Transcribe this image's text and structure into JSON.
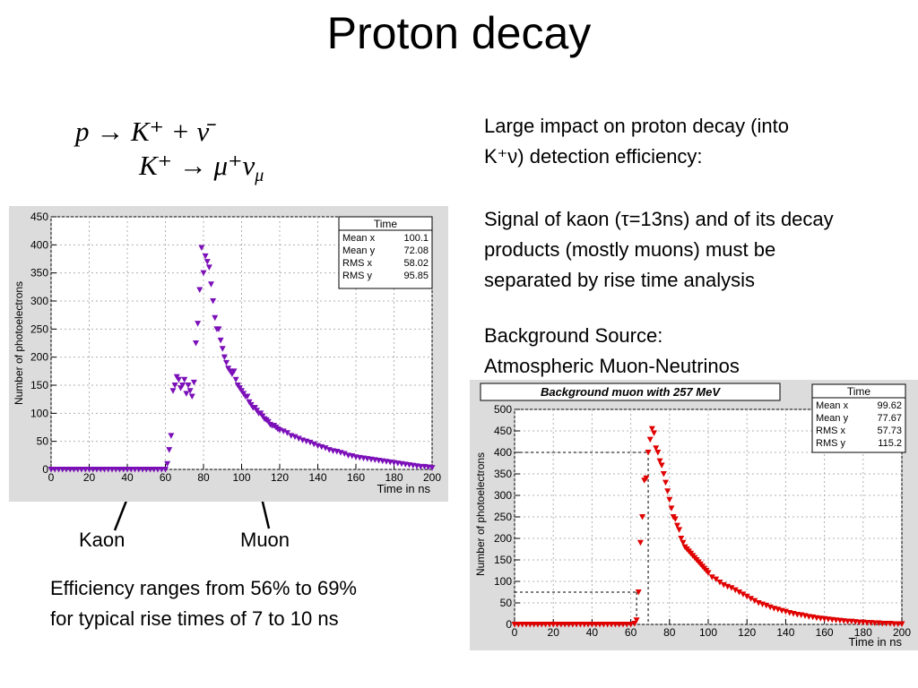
{
  "slide": {
    "title": "Proton decay",
    "equation_line1": "p → K⁺ + ν̄",
    "equation_line2": "K⁺ → μ⁺ν",
    "equation_line2_sub": "μ",
    "right_text_1_line1": "Large impact on proton decay (into",
    "right_text_1_line2": "K⁺ν)  detection efficiency:",
    "right_text_2_line1": "Signal of kaon (τ=13ns) and of its decay",
    "right_text_2_line2": "products (mostly muons) must be",
    "right_text_2_line3": "separated by rise time analysis",
    "background_line1": "Background Source:",
    "background_line2": "Atmospheric Muon-Neutrinos",
    "kaon_label": "Kaon",
    "muon_label": "Muon",
    "efficiency_line1": "Efficiency ranges from 56% to 69%",
    "efficiency_line2": "for typical rise times of 7 to 10 ns"
  },
  "chart_data": [
    {
      "type": "scatter",
      "title": "",
      "xlabel": "Time in ns",
      "ylabel": "Number of photoelectrons",
      "xlim": [
        0,
        200
      ],
      "ylim": [
        0,
        450
      ],
      "xticks": [
        0,
        20,
        40,
        60,
        80,
        100,
        120,
        140,
        160,
        180,
        200
      ],
      "yticks": [
        0,
        50,
        100,
        150,
        200,
        250,
        300,
        350,
        400,
        450
      ],
      "color": "#7b0fb8",
      "stats": {
        "name": "Time",
        "rows": [
          {
            "label": "Mean x",
            "value": "100.1"
          },
          {
            "label": "Mean y",
            "value": "72.08"
          },
          {
            "label": "RMS x",
            "value": "58.02"
          },
          {
            "label": "RMS y",
            "value": "95.85"
          }
        ]
      },
      "x": [
        0,
        2,
        4,
        6,
        8,
        10,
        12,
        14,
        16,
        18,
        20,
        22,
        24,
        26,
        28,
        30,
        32,
        34,
        36,
        38,
        40,
        42,
        44,
        46,
        48,
        50,
        52,
        54,
        56,
        58,
        60,
        61,
        62,
        63,
        64,
        65,
        66,
        67,
        68,
        69,
        70,
        71,
        72,
        73,
        74,
        75,
        76,
        77,
        78,
        79,
        80,
        81,
        82,
        83,
        84,
        85,
        86,
        87,
        88,
        89,
        90,
        91,
        92,
        93,
        94,
        95,
        96,
        97,
        98,
        99,
        100,
        101,
        102,
        103,
        104,
        105,
        106,
        107,
        108,
        109,
        110,
        111,
        112,
        113,
        114,
        115,
        116,
        117,
        118,
        119,
        120,
        122,
        124,
        126,
        128,
        130,
        132,
        134,
        136,
        138,
        140,
        142,
        144,
        146,
        148,
        150,
        152,
        154,
        156,
        158,
        160,
        162,
        164,
        166,
        168,
        170,
        172,
        174,
        176,
        178,
        180,
        182,
        184,
        186,
        188,
        190,
        192,
        194,
        196,
        198,
        200
      ],
      "y": [
        0,
        0,
        0,
        0,
        0,
        0,
        0,
        0,
        0,
        0,
        0,
        0,
        0,
        0,
        0,
        0,
        0,
        0,
        0,
        0,
        0,
        0,
        0,
        0,
        0,
        0,
        0,
        0,
        0,
        0,
        0,
        10,
        35,
        60,
        140,
        150,
        165,
        160,
        145,
        150,
        160,
        135,
        150,
        140,
        130,
        155,
        225,
        260,
        320,
        395,
        350,
        380,
        370,
        360,
        330,
        300,
        270,
        250,
        250,
        230,
        215,
        200,
        190,
        180,
        175,
        170,
        175,
        160,
        150,
        145,
        140,
        135,
        130,
        130,
        120,
        115,
        110,
        110,
        105,
        100,
        100,
        95,
        90,
        88,
        85,
        80,
        78,
        78,
        75,
        72,
        70,
        68,
        65,
        60,
        58,
        55,
        52,
        50,
        48,
        45,
        42,
        40,
        38,
        35,
        33,
        32,
        30,
        28,
        25,
        24,
        22,
        21,
        20,
        19,
        18,
        17,
        16,
        15,
        14,
        13,
        12,
        11,
        10,
        9,
        8,
        7,
        6,
        5,
        5,
        4,
        3
      ]
    },
    {
      "type": "scatter",
      "title": "Background muon with 257 MeV",
      "xlabel": "Time in ns",
      "ylabel": "Number of photoelectrons",
      "xlim": [
        0,
        200
      ],
      "ylim": [
        0,
        500
      ],
      "xticks": [
        0,
        20,
        40,
        60,
        80,
        100,
        120,
        140,
        160,
        180,
        200
      ],
      "yticks": [
        0,
        50,
        100,
        150,
        200,
        250,
        300,
        350,
        400,
        450,
        500
      ],
      "color": "#e00000",
      "guides": [
        {
          "x": 69,
          "y": 400
        },
        {
          "x": 63,
          "y": 75
        }
      ],
      "stats": {
        "name": "Time",
        "rows": [
          {
            "label": "Mean x",
            "value": "99.62"
          },
          {
            "label": "Mean y",
            "value": "77.67"
          },
          {
            "label": "RMS x",
            "value": "57.73"
          },
          {
            "label": "RMS y",
            "value": "115.2"
          }
        ]
      },
      "x": [
        0,
        2,
        4,
        6,
        8,
        10,
        12,
        14,
        16,
        18,
        20,
        22,
        24,
        26,
        28,
        30,
        32,
        34,
        36,
        38,
        40,
        42,
        44,
        46,
        48,
        50,
        52,
        54,
        56,
        58,
        60,
        62,
        63,
        64,
        65,
        66,
        67,
        68,
        69,
        70,
        71,
        72,
        73,
        74,
        75,
        76,
        77,
        78,
        79,
        80,
        81,
        82,
        83,
        84,
        85,
        86,
        87,
        88,
        89,
        90,
        91,
        92,
        93,
        94,
        95,
        96,
        97,
        98,
        99,
        100,
        102,
        104,
        106,
        108,
        110,
        112,
        114,
        116,
        118,
        120,
        122,
        124,
        126,
        128,
        130,
        132,
        134,
        136,
        138,
        140,
        142,
        144,
        146,
        148,
        150,
        152,
        154,
        156,
        158,
        160,
        162,
        164,
        166,
        168,
        170,
        172,
        174,
        176,
        178,
        180,
        182,
        184,
        186,
        188,
        190,
        192,
        194,
        196,
        198,
        200
      ],
      "y": [
        0,
        0,
        0,
        0,
        0,
        0,
        0,
        0,
        0,
        0,
        0,
        0,
        0,
        0,
        0,
        0,
        0,
        0,
        0,
        0,
        0,
        0,
        0,
        0,
        0,
        0,
        0,
        0,
        0,
        0,
        0,
        2,
        10,
        75,
        190,
        250,
        335,
        340,
        400,
        430,
        455,
        445,
        410,
        400,
        380,
        370,
        350,
        330,
        310,
        290,
        270,
        250,
        245,
        230,
        220,
        200,
        190,
        180,
        175,
        170,
        165,
        160,
        155,
        150,
        145,
        140,
        135,
        130,
        125,
        120,
        110,
        105,
        98,
        92,
        88,
        85,
        80,
        75,
        70,
        65,
        60,
        55,
        50,
        47,
        44,
        40,
        37,
        35,
        32,
        30,
        27,
        25,
        23,
        22,
        20,
        18,
        17,
        15,
        14,
        13,
        12,
        11,
        10,
        9,
        8,
        7,
        7,
        6,
        5,
        5,
        4,
        4,
        3,
        3,
        2,
        2,
        2,
        1,
        1,
        1
      ]
    }
  ]
}
